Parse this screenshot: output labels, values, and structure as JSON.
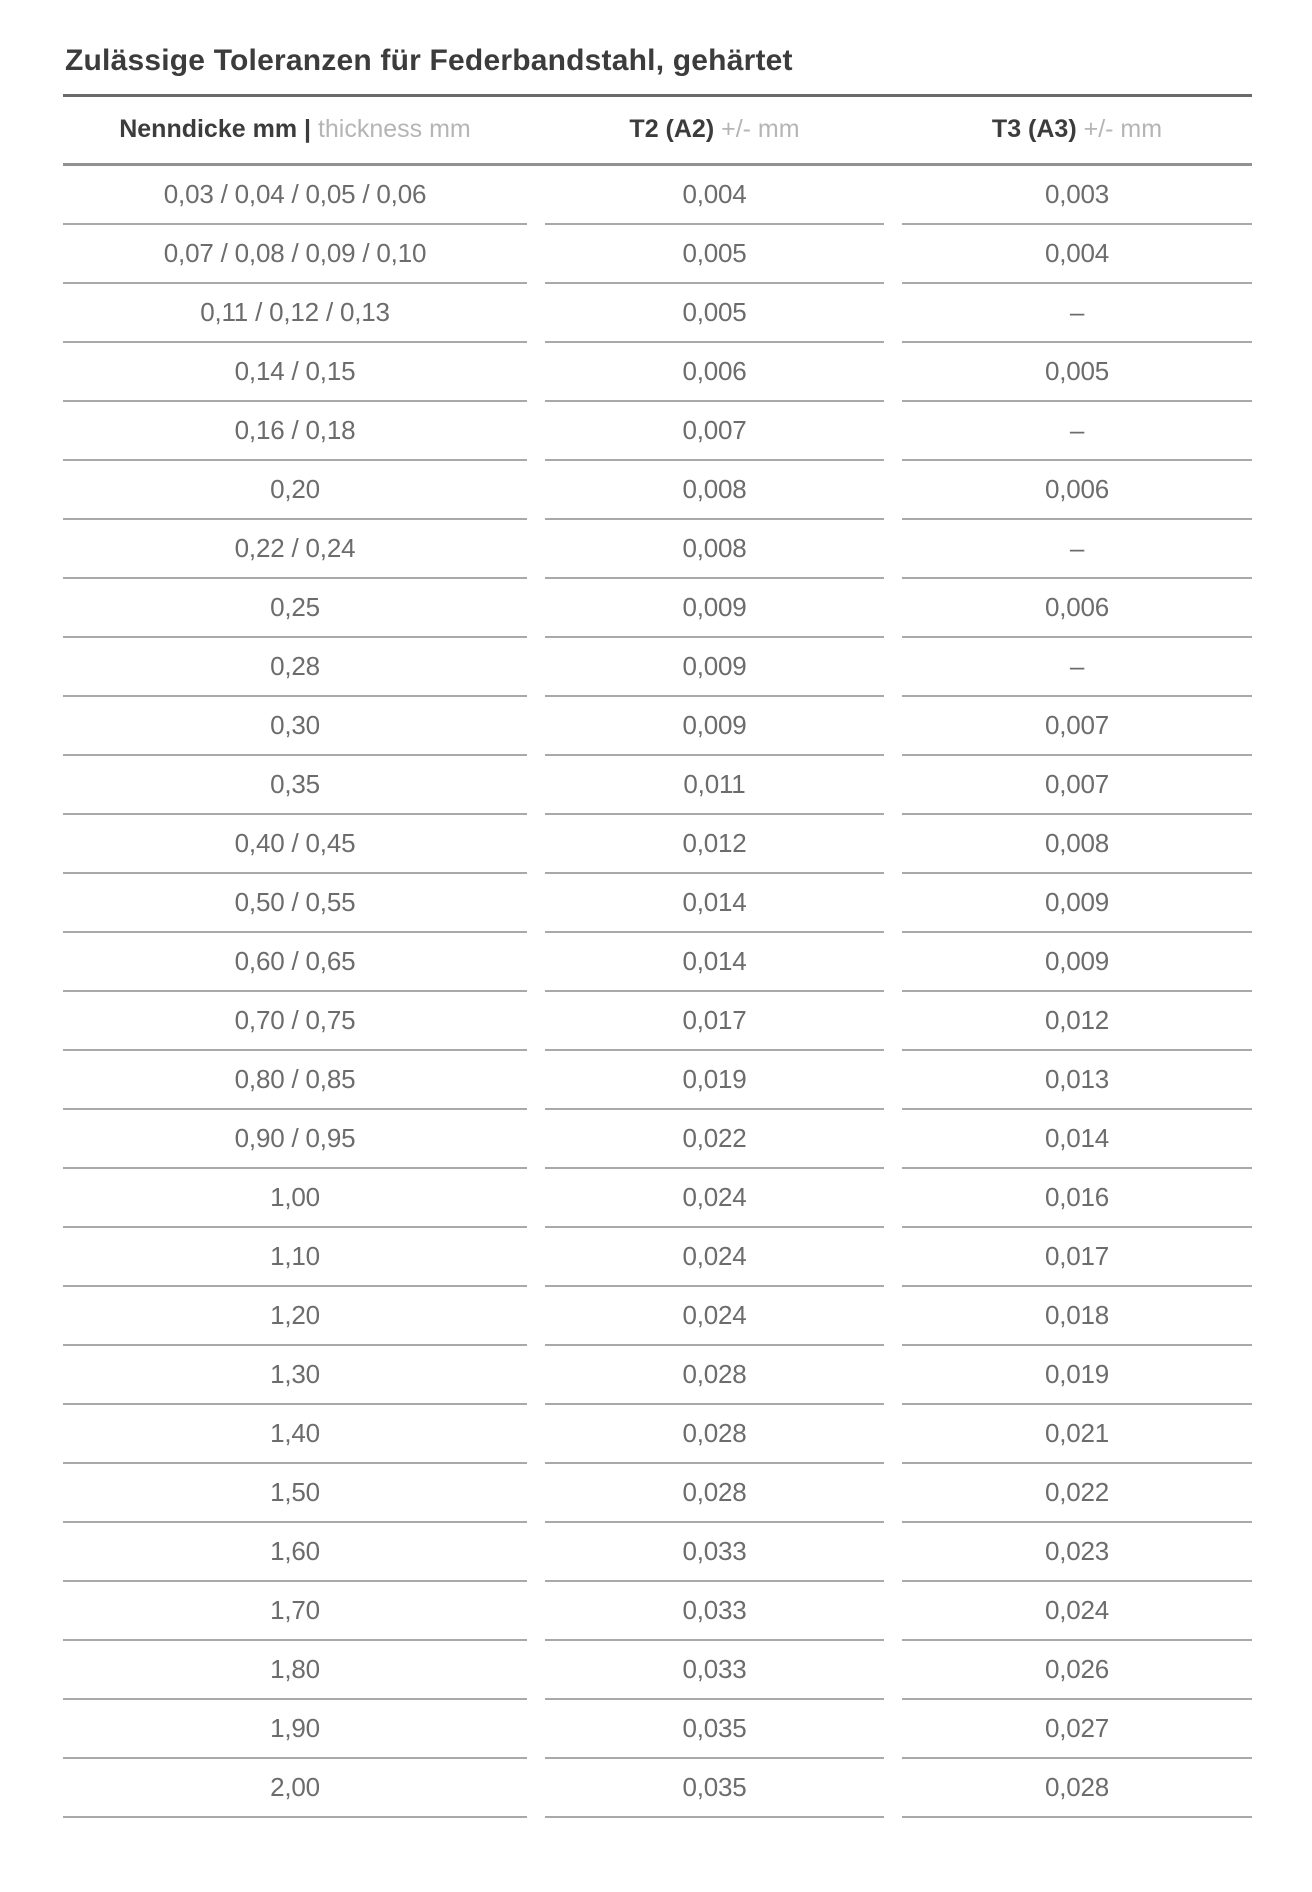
{
  "page": {
    "title": "Zulässige Toleranzen für Federbandstahl, gehärtet"
  },
  "table": {
    "headers": [
      {
        "bold": "Nenndicke mm |",
        "light": "thickness mm"
      },
      {
        "bold": "T2 (A2)",
        "light": "+/- mm"
      },
      {
        "bold": "T3 (A3)",
        "light": "+/- mm"
      }
    ],
    "empty_value": "–",
    "rows": [
      [
        "0,03 / 0,04 / 0,05 / 0,06",
        "0,004",
        "0,003"
      ],
      [
        "0,07 / 0,08 / 0,09 / 0,10",
        "0,005",
        "0,004"
      ],
      [
        "0,11 / 0,12 / 0,13",
        "0,005",
        "–"
      ],
      [
        "0,14 / 0,15",
        "0,006",
        "0,005"
      ],
      [
        "0,16 / 0,18",
        "0,007",
        "–"
      ],
      [
        "0,20",
        "0,008",
        "0,006"
      ],
      [
        "0,22 / 0,24",
        "0,008",
        "–"
      ],
      [
        "0,25",
        "0,009",
        "0,006"
      ],
      [
        "0,28",
        "0,009",
        "–"
      ],
      [
        "0,30",
        "0,009",
        "0,007"
      ],
      [
        "0,35",
        "0,011",
        "0,007"
      ],
      [
        "0,40 / 0,45",
        "0,012",
        "0,008"
      ],
      [
        "0,50 / 0,55",
        "0,014",
        "0,009"
      ],
      [
        "0,60 / 0,65",
        "0,014",
        "0,009"
      ],
      [
        "0,70 / 0,75",
        "0,017",
        "0,012"
      ],
      [
        "0,80 / 0,85",
        "0,019",
        "0,013"
      ],
      [
        "0,90 / 0,95",
        "0,022",
        "0,014"
      ],
      [
        "1,00",
        "0,024",
        "0,016"
      ],
      [
        "1,10",
        "0,024",
        "0,017"
      ],
      [
        "1,20",
        "0,024",
        "0,018"
      ],
      [
        "1,30",
        "0,028",
        "0,019"
      ],
      [
        "1,40",
        "0,028",
        "0,021"
      ],
      [
        "1,50",
        "0,028",
        "0,022"
      ],
      [
        "1,60",
        "0,033",
        "0,023"
      ],
      [
        "1,70",
        "0,033",
        "0,024"
      ],
      [
        "1,80",
        "0,033",
        "0,026"
      ],
      [
        "1,90",
        "0,035",
        "0,027"
      ],
      [
        "2,00",
        "0,035",
        "0,028"
      ]
    ]
  },
  "colors": {
    "background": "#ffffff",
    "title_text": "#3c3c3c",
    "header_bold_text": "#3c3c3c",
    "header_light_text": "#b5b5b5",
    "data_text": "#6c6c6c",
    "title_rule": "#6a6a6a",
    "header_rule": "#919191",
    "row_separator": "#a9a9a9"
  }
}
